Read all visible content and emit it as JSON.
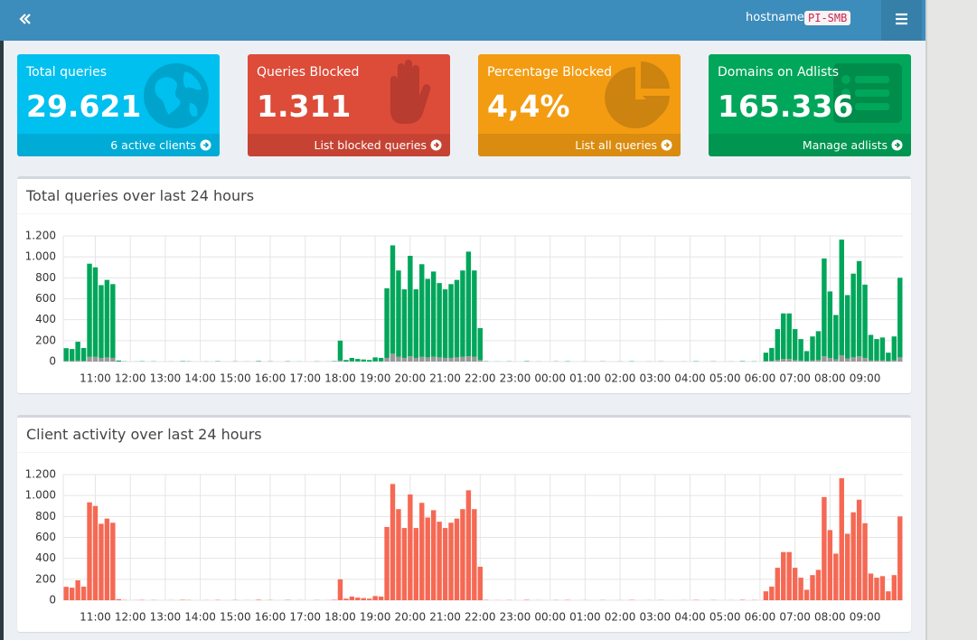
{
  "header": {
    "hostname_label": "hostname:",
    "hostname": "PI-SMB"
  },
  "stats": [
    {
      "title": "Total queries",
      "value": "29.621",
      "footer": "6 active clients"
    },
    {
      "title": "Queries Blocked",
      "value": "1.311",
      "footer": "List blocked queries"
    },
    {
      "title": "Percentage Blocked",
      "value": "4,4%",
      "footer": "List all queries"
    },
    {
      "title": "Domains on Adlists",
      "value": "165.336",
      "footer": "Manage adlists"
    }
  ],
  "chart_data": [
    {
      "type": "stacked-bar",
      "title": "Total queries over last 24 hours",
      "categories": [
        null,
        null,
        null,
        null,
        null,
        "11:00",
        null,
        null,
        null,
        null,
        null,
        "12:00",
        null,
        null,
        null,
        null,
        null,
        "13:00",
        null,
        null,
        null,
        null,
        null,
        "14:00",
        null,
        null,
        null,
        null,
        null,
        "15:00",
        null,
        null,
        null,
        null,
        null,
        "16:00",
        null,
        null,
        null,
        null,
        null,
        "17:00",
        null,
        null,
        null,
        null,
        null,
        "18:00",
        null,
        null,
        null,
        null,
        null,
        "19:00",
        null,
        null,
        null,
        null,
        null,
        "20:00",
        null,
        null,
        null,
        null,
        null,
        "21:00",
        null,
        null,
        null,
        null,
        null,
        "22:00",
        null,
        null,
        null,
        null,
        null,
        "23:00",
        null,
        null,
        null,
        null,
        null,
        "00:00",
        null,
        null,
        null,
        null,
        null,
        "01:00",
        null,
        null,
        null,
        null,
        null,
        "02:00",
        null,
        null,
        null,
        null,
        null,
        "03:00",
        null,
        null,
        null,
        null,
        null,
        "04:00",
        null,
        null,
        null,
        null,
        null,
        "05:00",
        null,
        null,
        null,
        null,
        null,
        "06:00",
        null,
        null,
        null,
        null,
        null,
        "07:00",
        null,
        null,
        null,
        null,
        null,
        "08:00",
        null,
        null,
        null,
        null,
        null,
        "09:00",
        null,
        null,
        null,
        null,
        null,
        null
      ],
      "series": [
        {
          "color": "#999999",
          "values": [
            6,
            6,
            10,
            6,
            45,
            45,
            35,
            40,
            35,
            0,
            0,
            0,
            0,
            0,
            0,
            0,
            0,
            0,
            0,
            0,
            0,
            0,
            0,
            0,
            0,
            0,
            0,
            0,
            0,
            0,
            0,
            0,
            0,
            0,
            0,
            0,
            0,
            0,
            0,
            0,
            0,
            0,
            0,
            0,
            0,
            0,
            0,
            10,
            0,
            2,
            1,
            1,
            0,
            2,
            2,
            35,
            75,
            45,
            35,
            50,
            35,
            45,
            40,
            45,
            40,
            35,
            35,
            40,
            45,
            50,
            45,
            15,
            0,
            0,
            0,
            0,
            0,
            0,
            0,
            0,
            0,
            0,
            0,
            0,
            0,
            0,
            0,
            0,
            0,
            0,
            0,
            0,
            0,
            0,
            0,
            0,
            0,
            0,
            0,
            0,
            0,
            0,
            0,
            0,
            0,
            0,
            0,
            0,
            0,
            0,
            0,
            0,
            0,
            0,
            0,
            0,
            0,
            0,
            0,
            0,
            5,
            6,
            15,
            25,
            25,
            15,
            10,
            5,
            12,
            15,
            50,
            35,
            20,
            60,
            30,
            40,
            50,
            35,
            12,
            10,
            12,
            5,
            12,
            40
          ]
        },
        {
          "color": "#00a65a",
          "values": [
            122,
            114,
            180,
            124,
            890,
            855,
            695,
            740,
            705,
            10,
            2,
            0,
            1,
            3,
            0,
            2,
            0,
            0,
            1,
            0,
            4,
            2,
            0,
            0,
            1,
            0,
            3,
            0,
            0,
            2,
            0,
            1,
            0,
            5,
            0,
            2,
            0,
            0,
            3,
            0,
            1,
            0,
            0,
            2,
            0,
            1,
            4,
            190,
            15,
            33,
            24,
            19,
            15,
            38,
            33,
            665,
            1035,
            825,
            655,
            960,
            655,
            885,
            750,
            815,
            710,
            655,
            705,
            740,
            825,
            1000,
            825,
            305,
            3,
            0,
            1,
            0,
            2,
            0,
            0,
            4,
            0,
            1,
            0,
            0,
            2,
            0,
            3,
            0,
            0,
            1,
            0,
            0,
            2,
            0,
            0,
            1,
            0,
            3,
            0,
            0,
            1,
            0,
            2,
            0,
            0,
            0,
            1,
            0,
            3,
            0,
            0,
            2,
            0,
            0,
            1,
            0,
            4,
            0,
            2,
            0,
            80,
            124,
            295,
            435,
            435,
            295,
            205,
            95,
            228,
            275,
            935,
            635,
            425,
            1105,
            605,
            800,
            910,
            700,
            243,
            205,
            218,
            80,
            228,
            760
          ]
        }
      ],
      "ylim": [
        0,
        1200
      ],
      "yticks": [
        0,
        200,
        400,
        600,
        800,
        {
          "value": 1000,
          "label": "1.000"
        },
        {
          "value": 1200,
          "label": "1.200"
        }
      ],
      "grid": true
    },
    {
      "type": "bar",
      "title": "Client activity over last 24 hours",
      "categories": [
        null,
        null,
        null,
        null,
        null,
        "11:00",
        null,
        null,
        null,
        null,
        null,
        "12:00",
        null,
        null,
        null,
        null,
        null,
        "13:00",
        null,
        null,
        null,
        null,
        null,
        "14:00",
        null,
        null,
        null,
        null,
        null,
        "15:00",
        null,
        null,
        null,
        null,
        null,
        "16:00",
        null,
        null,
        null,
        null,
        null,
        "17:00",
        null,
        null,
        null,
        null,
        null,
        "18:00",
        null,
        null,
        null,
        null,
        null,
        "19:00",
        null,
        null,
        null,
        null,
        null,
        "20:00",
        null,
        null,
        null,
        null,
        null,
        "21:00",
        null,
        null,
        null,
        null,
        null,
        "22:00",
        null,
        null,
        null,
        null,
        null,
        "23:00",
        null,
        null,
        null,
        null,
        null,
        "00:00",
        null,
        null,
        null,
        null,
        null,
        "01:00",
        null,
        null,
        null,
        null,
        null,
        "02:00",
        null,
        null,
        null,
        null,
        null,
        "03:00",
        null,
        null,
        null,
        null,
        null,
        "04:00",
        null,
        null,
        null,
        null,
        null,
        "05:00",
        null,
        null,
        null,
        null,
        null,
        "06:00",
        null,
        null,
        null,
        null,
        null,
        "07:00",
        null,
        null,
        null,
        null,
        null,
        "08:00",
        null,
        null,
        null,
        null,
        null,
        "09:00",
        null,
        null,
        null,
        null,
        null,
        null
      ],
      "color": "#f56954",
      "values": [
        128,
        120,
        190,
        130,
        935,
        900,
        730,
        780,
        740,
        10,
        2,
        0,
        1,
        3,
        0,
        2,
        0,
        0,
        1,
        0,
        4,
        2,
        0,
        0,
        1,
        0,
        3,
        0,
        0,
        2,
        0,
        1,
        0,
        5,
        0,
        2,
        0,
        0,
        3,
        0,
        1,
        0,
        0,
        2,
        0,
        1,
        4,
        200,
        15,
        35,
        25,
        20,
        15,
        40,
        35,
        700,
        1110,
        870,
        690,
        1010,
        690,
        930,
        790,
        860,
        750,
        690,
        740,
        780,
        870,
        1050,
        870,
        320,
        3,
        0,
        1,
        0,
        2,
        0,
        0,
        4,
        0,
        1,
        0,
        0,
        2,
        0,
        3,
        0,
        0,
        1,
        0,
        0,
        2,
        0,
        0,
        1,
        0,
        3,
        0,
        0,
        1,
        0,
        2,
        0,
        0,
        0,
        1,
        0,
        3,
        0,
        0,
        2,
        0,
        0,
        1,
        0,
        4,
        0,
        2,
        0,
        85,
        130,
        310,
        460,
        460,
        310,
        215,
        100,
        240,
        290,
        985,
        670,
        445,
        1165,
        635,
        840,
        960,
        735,
        255,
        215,
        230,
        85,
        240,
        800
      ],
      "ylim": [
        0,
        1200
      ],
      "yticks": [
        0,
        200,
        400,
        600,
        800,
        {
          "value": 1000,
          "label": "1.000"
        },
        {
          "value": 1200,
          "label": "1.200"
        }
      ],
      "grid": true
    }
  ]
}
